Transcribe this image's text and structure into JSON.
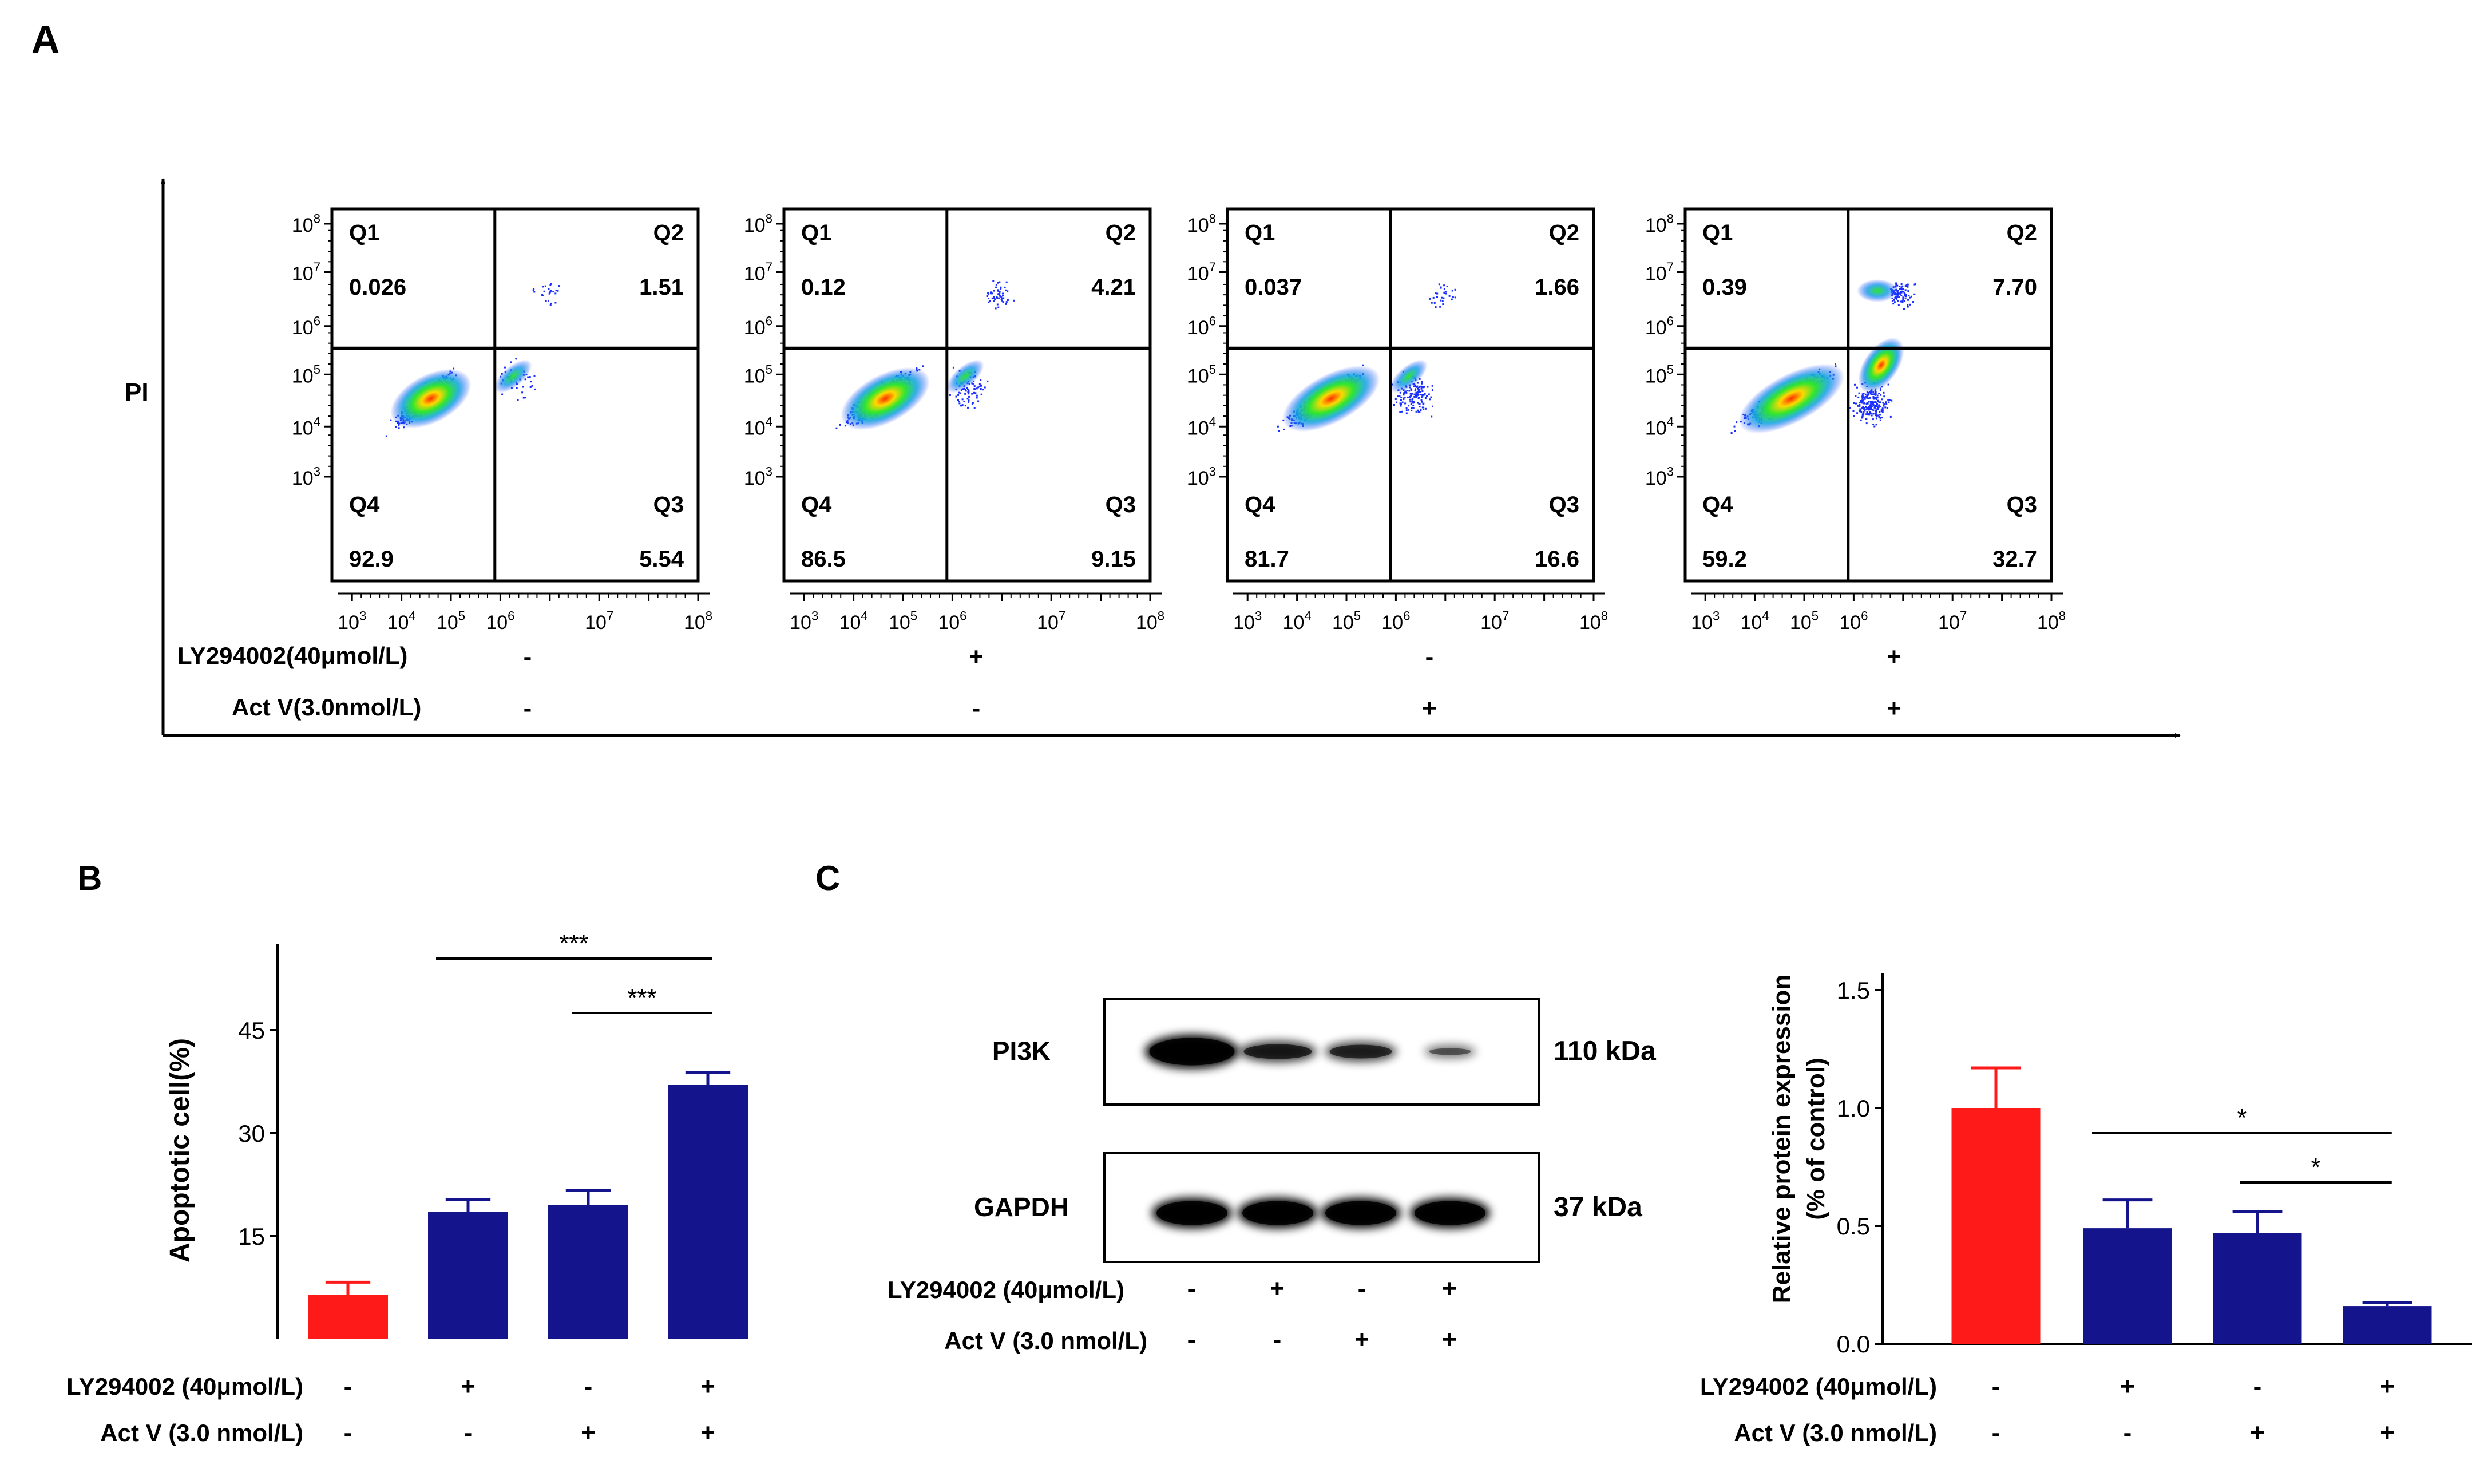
{
  "panel_labels": {
    "a": "A",
    "b": "B",
    "c": "C"
  },
  "panel_a": {
    "y_axis_label": "PI",
    "x_ticks": [
      {
        "base": "10",
        "exp": "3"
      },
      {
        "base": "10",
        "exp": "4"
      },
      {
        "base": "10",
        "exp": "5"
      },
      {
        "base": "10",
        "exp": "6"
      },
      {
        "base": "10",
        "exp": "7"
      },
      {
        "base": "10",
        "exp": "8"
      }
    ],
    "y_ticks": [
      {
        "base": "10",
        "exp": "8"
      },
      {
        "base": "10",
        "exp": "7"
      },
      {
        "base": "10",
        "exp": "6"
      },
      {
        "base": "10",
        "exp": "5"
      },
      {
        "base": "10",
        "exp": "4"
      },
      {
        "base": "10",
        "exp": "3"
      }
    ],
    "row_labels": {
      "ly": "LY294002(40μmol/L)",
      "act": "Act V(3.0nmol/L)"
    },
    "plots": [
      {
        "q1": "Q1",
        "q2": "Q2",
        "q3": "Q3",
        "q4": "Q4",
        "v1": "0.026",
        "v2": "1.51",
        "v3": "5.54",
        "v4": "92.9",
        "ly": "-",
        "act": "-"
      },
      {
        "q1": "Q1",
        "q2": "Q2",
        "q3": "Q3",
        "q4": "Q4",
        "v1": "0.12",
        "v2": "4.21",
        "v3": "9.15",
        "v4": "86.5",
        "ly": "+",
        "act": "-"
      },
      {
        "q1": "Q1",
        "q2": "Q2",
        "q3": "Q3",
        "q4": "Q4",
        "v1": "0.037",
        "v2": "1.66",
        "v3": "16.6",
        "v4": "81.7",
        "ly": "-",
        "act": "+"
      },
      {
        "q1": "Q1",
        "q2": "Q2",
        "q3": "Q3",
        "q4": "Q4",
        "v1": "0.39",
        "v2": "7.70",
        "v3": "32.7",
        "v4": "59.2",
        "ly": "+",
        "act": "+"
      }
    ]
  },
  "panel_c_blot": {
    "bands": [
      {
        "name": "PI3K",
        "size": "110 kDa",
        "intensity": [
          1.0,
          0.65,
          0.6,
          0.35
        ]
      },
      {
        "name": "GAPDH",
        "size": "37 kDa",
        "intensity": [
          1.0,
          1.0,
          1.0,
          1.0
        ]
      }
    ],
    "ly_label": "LY294002 (40μmol/L)",
    "act_label": "Act V (3.0 nmol/L)",
    "ly": [
      "-",
      "+",
      "-",
      "+"
    ],
    "act": [
      "-",
      "-",
      "+",
      "+"
    ]
  },
  "chart_data": [
    {
      "type": "bar",
      "panel": "B",
      "ylabel": "Apoptotic cell(%)",
      "ylim": [
        0,
        55
      ],
      "yticks": [
        "15",
        "30",
        "45"
      ],
      "values": [
        6.5,
        18.5,
        19.5,
        37.0
      ],
      "errors": [
        1.8,
        1.8,
        2.2,
        1.8
      ],
      "colors": [
        "#ff1a1a",
        "#14148c",
        "#14148c",
        "#14148c"
      ],
      "ly_label": "LY294002 (40μmol/L)",
      "act_label": "Act V (3.0 nmol/L)",
      "ly": [
        "-",
        "+",
        "-",
        "+"
      ],
      "act": [
        "-",
        "-",
        "+",
        "+"
      ],
      "significance": [
        {
          "from": 1,
          "to": 3,
          "label": "***"
        },
        {
          "from": 2,
          "to": 3,
          "label": "***"
        }
      ]
    },
    {
      "type": "bar",
      "panel": "C",
      "ylabel_line1": "Relative protein expression",
      "ylabel_line2": "(% of control)",
      "ylim": [
        0,
        1.5
      ],
      "yticks": [
        "0.0",
        "0.5",
        "1.0",
        "1.5"
      ],
      "values": [
        1.0,
        0.49,
        0.47,
        0.16
      ],
      "errors": [
        0.17,
        0.12,
        0.09,
        0.015
      ],
      "colors": [
        "#ff1a1a",
        "#14148c",
        "#14148c",
        "#14148c"
      ],
      "ly_label": "LY294002 (40μmol/L)",
      "act_label": "Act V (3.0 nmol/L)",
      "ly": [
        "-",
        "+",
        "-",
        "+"
      ],
      "act": [
        "-",
        "-",
        "+",
        "+"
      ],
      "significance": [
        {
          "from": 1,
          "to": 3,
          "label": "*"
        },
        {
          "from": 2,
          "to": 3,
          "label": "*"
        }
      ]
    }
  ]
}
